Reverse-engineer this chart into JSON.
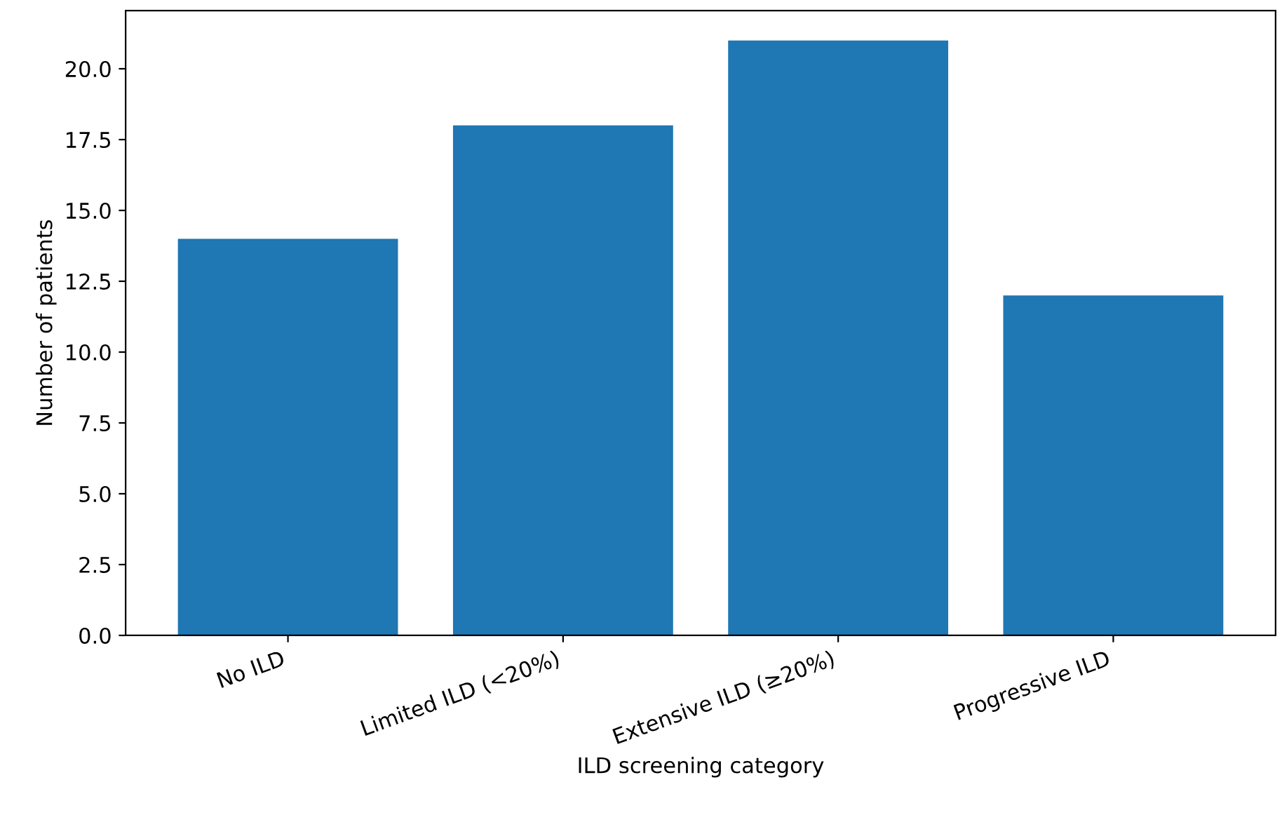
{
  "chart_data": {
    "type": "bar",
    "xlabel": "ILD screening category",
    "ylabel": "Number of patients",
    "categories": [
      "No ILD",
      "Limited ILD (<20%)",
      "Extensive ILD (≥20%)",
      "Progressive ILD"
    ],
    "values": [
      14,
      18,
      21,
      12
    ],
    "color": "#1f77b4",
    "ylim": [
      0,
      22.05
    ],
    "yticks": [
      {
        "value": 0,
        "label": "0.0"
      },
      {
        "value": 2.5,
        "label": "2.5"
      },
      {
        "value": 5,
        "label": "5.0"
      },
      {
        "value": 7.5,
        "label": "7.5"
      },
      {
        "value": 10,
        "label": "10.0"
      },
      {
        "value": 12.5,
        "label": "12.5"
      },
      {
        "value": 15,
        "label": "15.0"
      },
      {
        "value": 17.5,
        "label": "17.5"
      },
      {
        "value": 20,
        "label": "20.0"
      }
    ],
    "grid": false
  }
}
